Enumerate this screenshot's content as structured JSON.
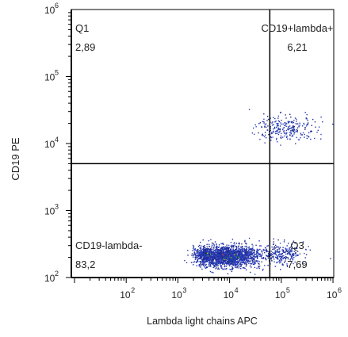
{
  "chart_data": {
    "type": "scatter",
    "xlabel": "Lambda light chains  APC",
    "ylabel": "CD19 PE",
    "xscale": "log",
    "yscale": "log",
    "xlim": [
      10,
      1000000
    ],
    "ylim": [
      100,
      1000000
    ],
    "x_ticks": [
      {
        "label": "10",
        "exp": "2",
        "value": 100
      },
      {
        "label": "10",
        "exp": "3",
        "value": 1000
      },
      {
        "label": "10",
        "exp": "4",
        "value": 10000
      },
      {
        "label": "10",
        "exp": "5",
        "value": 100000
      },
      {
        "label": "10",
        "exp": "6",
        "value": 1000000
      }
    ],
    "y_ticks": [
      {
        "label": "10",
        "exp": "2",
        "value": 100
      },
      {
        "label": "10",
        "exp": "3",
        "value": 1000
      },
      {
        "label": "10",
        "exp": "4",
        "value": 10000
      },
      {
        "label": "10",
        "exp": "5",
        "value": 100000
      },
      {
        "label": "10",
        "exp": "6",
        "value": 1000000
      }
    ],
    "gate": {
      "x": 60000,
      "y": 5000
    },
    "quadrants": [
      {
        "name": "Q1",
        "value": "2,89",
        "corner": "top-left"
      },
      {
        "name": "CD19+lambda+",
        "value": "6,21",
        "corner": "top-right"
      },
      {
        "name": "CD19-lambda-",
        "value": "83,2",
        "corner": "bottom-left"
      },
      {
        "name": "Q3",
        "value": "7,69",
        "corner": "bottom-right"
      }
    ],
    "populations": [
      {
        "cx": 10000,
        "cy": 210,
        "sx": 0.28,
        "sy": 0.08,
        "n": 1600
      },
      {
        "cx": 3500,
        "cy": 220,
        "sx": 0.12,
        "sy": 0.06,
        "n": 500
      },
      {
        "cx": 120000,
        "cy": 17000,
        "sx": 0.3,
        "sy": 0.09,
        "n": 260
      },
      {
        "cx": 100000,
        "cy": 230,
        "sx": 0.22,
        "sy": 0.08,
        "n": 260
      }
    ],
    "point_colors": [
      "#1b2a9e",
      "#2233b8",
      "#3346d0",
      "#1f3fa8",
      "#2a2a80"
    ],
    "hot_colors": [
      "#2bb24c",
      "#c8d62a",
      "#e03a2a",
      "#3fae3f"
    ],
    "axis_color": "#000000",
    "grid": false,
    "legend": "none"
  }
}
